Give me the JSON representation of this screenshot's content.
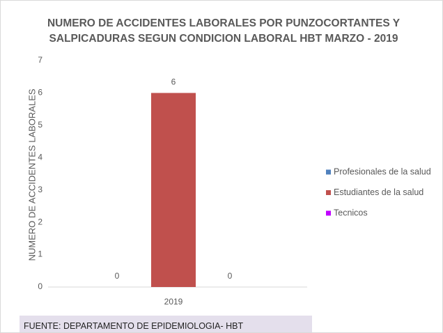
{
  "chart_data": {
    "type": "bar",
    "title": "NUMERO DE ACCIDENTES LABORALES POR PUNZOCORTANTES Y SALPICADURAS SEGUN CONDICION LABORAL HBT  MARZO - 2019",
    "y_label": "NUMERO DE ACCIDENTES LABORALES",
    "categories": [
      "2019"
    ],
    "series": [
      {
        "name": "Profesionales de la salud",
        "color": "#4f81bd",
        "values": [
          0
        ]
      },
      {
        "name": "Estudiantes de la salud",
        "color": "#c0504d",
        "values": [
          6
        ]
      },
      {
        "name": "Tecnicos",
        "color": "#c000ff",
        "values": [
          0
        ]
      }
    ],
    "ylim": [
      0,
      7
    ],
    "yticks": [
      0,
      1,
      2,
      3,
      4,
      5,
      6,
      7
    ],
    "grid": false,
    "legend": "right",
    "source": "FUENTE: DEPARTAMENTO DE EPIDEMIOLOGIA- HBT"
  }
}
